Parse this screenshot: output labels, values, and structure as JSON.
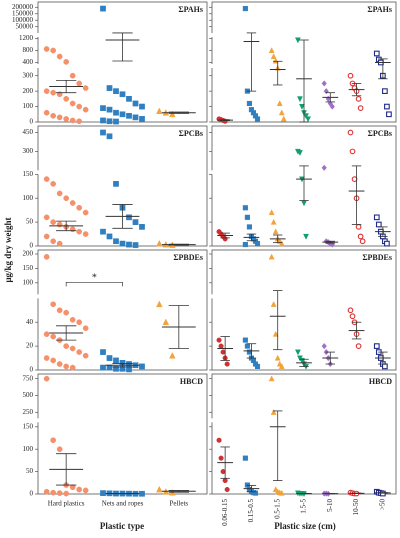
{
  "y_label": "μg/kg dry weight",
  "type_axis": {
    "title": "Plastic type",
    "categories": [
      "Hard plastics",
      "Nets and ropes",
      "Pellets"
    ],
    "colors": [
      "#f4906a",
      "#2f7fc1",
      "#f2a43a"
    ],
    "markers": [
      "circle",
      "square",
      "triangle"
    ],
    "filled": [
      true,
      true,
      true
    ]
  },
  "size_axis": {
    "title": "Plastic size (cm)",
    "categories": [
      "0.06-0.15",
      "0.15-0.5",
      "0.5-1.5",
      "1.5-5",
      "5-10",
      "10-50",
      ">50"
    ],
    "colors": [
      "#d03030",
      "#2f7fc1",
      "#f2a43a",
      "#10a070",
      "#a070c8",
      "#e03030",
      "#1f2a8a"
    ],
    "markers": [
      "circle",
      "square",
      "triangle",
      "triangle-down",
      "diamond",
      "circle",
      "square"
    ],
    "filled": [
      true,
      true,
      true,
      true,
      true,
      false,
      false
    ]
  },
  "chart_data": [
    {
      "type": "strip",
      "title": "ΣPAHs",
      "segments": [
        {
          "ylim": [
            0,
            350
          ],
          "yticks": [
            0,
            100,
            200,
            300
          ]
        },
        {
          "ylim": [
            350,
            1250
          ],
          "yticks": [
            400,
            800,
            1200
          ]
        },
        {
          "ylim": [
            1250,
            210000
          ],
          "yticks": [
            50000,
            100000,
            150000,
            200000
          ]
        }
      ],
      "type_groups": {
        "values": [
          [
            850,
            800,
            600,
            420,
            300,
            250,
            220,
            200,
            190,
            180,
            150,
            120,
            100,
            80,
            60,
            40,
            30,
            20,
            10,
            5
          ],
          [
            190000,
            220,
            200,
            180,
            150,
            120,
            100,
            90,
            80,
            60,
            50,
            40,
            30,
            20,
            10,
            5,
            3
          ],
          [
            70,
            60,
            50
          ]
        ],
        "means": [
          230,
          1150,
          60
        ],
        "errors": [
          40,
          700,
          5
        ]
      },
      "size_groups": {
        "values": [
          [
            20,
            15,
            10,
            5
          ],
          [
            190000,
            200,
            120,
            80,
            60,
            40,
            20
          ],
          [
            800,
            600,
            450,
            350,
            120,
            60,
            20
          ],
          [
            1150,
            150,
            100,
            60,
            40,
            20
          ],
          [
            250,
            200,
            150,
            120,
            100
          ],
          [
            300,
            250,
            220,
            200,
            150,
            90
          ],
          [
            700,
            500,
            400,
            300,
            200,
            100,
            50
          ]
        ],
        "means": [
          12,
          1100,
          340,
          280,
          160,
          210,
          400
        ],
        "errors": [
          3,
          900,
          100,
          870,
          30,
          40,
          120
        ]
      }
    },
    {
      "type": "strip",
      "title": "ΣPCBs",
      "segments": [
        {
          "ylim": [
            0,
            150
          ],
          "yticks": [
            0,
            50,
            100
          ]
        },
        {
          "ylim": [
            150,
            470
          ],
          "yticks": [
            150,
            300,
            450
          ]
        }
      ],
      "type_groups": {
        "values": [
          [
            140,
            130,
            110,
            100,
            90,
            80,
            70,
            60,
            50,
            45,
            40,
            35,
            30,
            25,
            20,
            10,
            5
          ],
          [
            450,
            420,
            130,
            80,
            60,
            50,
            40,
            30,
            20,
            10,
            5,
            3,
            2
          ],
          [
            5,
            3,
            2
          ]
        ],
        "means": [
          42,
          62,
          3
        ],
        "errors": [
          10,
          25,
          1
        ]
      },
      "size_groups": {
        "values": [
          [
            30,
            25,
            20,
            15
          ],
          [
            80,
            60,
            40,
            20,
            15,
            10,
            5,
            3
          ],
          [
            70,
            50,
            30,
            15,
            10,
            5
          ],
          [
            300,
            290,
            140,
            90,
            20
          ],
          [
            170,
            10,
            8,
            5,
            3
          ],
          [
            450,
            300,
            140,
            100,
            40,
            20,
            10
          ],
          [
            60,
            45,
            30,
            20,
            10,
            5
          ]
        ],
        "means": [
          22,
          18,
          15,
          140,
          8,
          115,
          30
        ],
        "errors": [
          5,
          7,
          8,
          45,
          2,
          70,
          10
        ]
      }
    },
    {
      "type": "strip",
      "title": "ΣPBDEs",
      "annotation": "*",
      "segments": [
        {
          "ylim": [
            0,
            60
          ],
          "yticks": [
            0,
            20,
            40
          ]
        },
        {
          "ylim": [
            60,
            200
          ],
          "yticks": [
            100,
            150,
            200
          ]
        }
      ],
      "type_groups": {
        "values": [
          [
            190,
            55,
            50,
            48,
            42,
            40,
            35,
            30,
            28,
            25,
            20,
            18,
            15,
            12,
            10,
            8,
            5,
            3,
            2
          ],
          [
            15,
            10,
            8,
            6,
            5,
            4,
            3,
            2,
            2,
            1,
            1,
            0.5
          ],
          [
            55,
            40,
            12
          ]
        ],
        "means": [
          31,
          4,
          36
        ],
        "errors": [
          6,
          1.5,
          18
        ]
      },
      "size_groups": {
        "values": [
          [
            25,
            20,
            15,
            10,
            5
          ],
          [
            25,
            20,
            15,
            10,
            8,
            5,
            3
          ],
          [
            190,
            55,
            30,
            10,
            5,
            3
          ],
          [
            15,
            10,
            8,
            5,
            3
          ],
          [
            20,
            15,
            10,
            5
          ],
          [
            50,
            45,
            40,
            30,
            20
          ],
          [
            20,
            15,
            10,
            5,
            3
          ]
        ],
        "means": [
          18,
          16,
          45,
          6,
          10,
          33,
          10
        ],
        "errors": [
          10,
          6,
          28,
          3,
          5,
          7,
          5
        ]
      }
    },
    {
      "type": "strip",
      "title": "HBCD",
      "segments": [
        {
          "ylim": [
            0,
            160
          ],
          "yticks": [
            0,
            50,
            100,
            150
          ]
        },
        {
          "ylim": [
            160,
            760
          ],
          "yticks": [
            250,
            500,
            750
          ]
        }
      ],
      "type_groups": {
        "values": [
          [
            750,
            120,
            100,
            20,
            15,
            10,
            8,
            5,
            3,
            2,
            1
          ],
          [
            2,
            1.5,
            1,
            1,
            0.8,
            0.5,
            0.5
          ],
          [
            10,
            5,
            3
          ]
        ],
        "means": [
          55,
          1,
          6
        ],
        "errors": [
          35,
          0.3,
          2
        ]
      },
      "size_groups": {
        "values": [
          [
            120,
            80,
            50,
            30,
            10
          ],
          [
            80,
            20,
            10,
            5,
            3,
            2
          ],
          [
            750,
            250,
            10,
            5,
            3,
            2
          ],
          [
            2,
            1,
            1,
            0.5
          ],
          [
            1,
            1,
            0.5
          ],
          [
            3,
            2,
            1,
            1
          ],
          [
            5,
            3,
            2,
            1
          ]
        ],
        "means": [
          70,
          12,
          150,
          1,
          0.7,
          1.5,
          2.5
        ],
        "errors": [
          35,
          7,
          120,
          0.3,
          0.2,
          0.5,
          0.7
        ]
      }
    }
  ]
}
